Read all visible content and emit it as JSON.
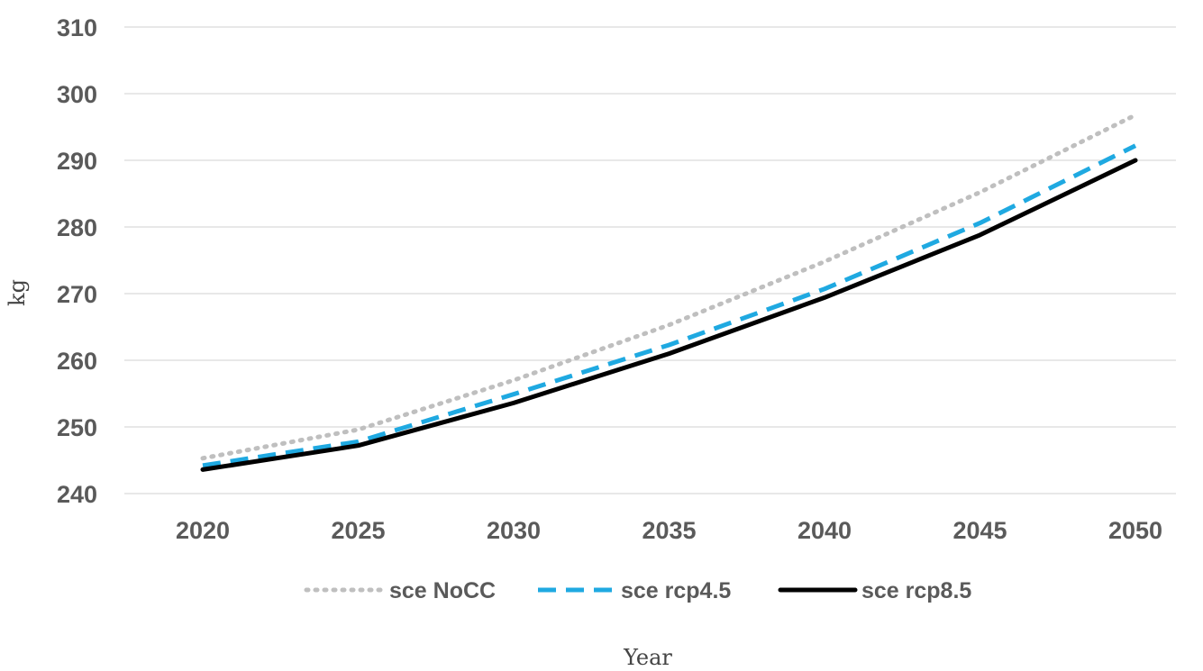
{
  "chart_data": {
    "type": "line",
    "title": "",
    "xlabel": "Year",
    "ylabel": "kg",
    "x": [
      2020,
      2025,
      2030,
      2035,
      2040,
      2045,
      2050
    ],
    "ylim": [
      240,
      310
    ],
    "yticks": [
      240,
      250,
      260,
      270,
      280,
      290,
      300,
      310
    ],
    "grid": true,
    "legend_position": "bottom",
    "series": [
      {
        "name": "sce NoCC",
        "values": [
          245.3,
          249.6,
          257.0,
          265.3,
          274.8,
          285.2,
          296.8
        ],
        "color": "#bfbfbf",
        "style": "dotted"
      },
      {
        "name": "sce rcp4.5",
        "values": [
          244.2,
          247.8,
          254.9,
          262.3,
          270.7,
          280.6,
          292.2
        ],
        "color": "#1fa9e1",
        "style": "dashed"
      },
      {
        "name": "sce rcp8.5",
        "values": [
          243.6,
          247.2,
          253.6,
          261.0,
          269.4,
          278.8,
          290.0
        ],
        "color": "#000000",
        "style": "solid"
      }
    ]
  }
}
